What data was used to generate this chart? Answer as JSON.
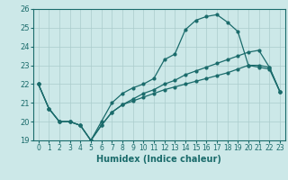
{
  "xlabel": "Humidex (Indice chaleur)",
  "xlim": [
    -0.5,
    23.5
  ],
  "ylim": [
    19,
    26
  ],
  "yticks": [
    19,
    20,
    21,
    22,
    23,
    24,
    25,
    26
  ],
  "xticks": [
    0,
    1,
    2,
    3,
    4,
    5,
    6,
    7,
    8,
    9,
    10,
    11,
    12,
    13,
    14,
    15,
    16,
    17,
    18,
    19,
    20,
    21,
    22,
    23
  ],
  "bg_color": "#cce8e8",
  "line_color": "#1a6b6b",
  "grid_color": "#aacccc",
  "curve1_x": [
    0,
    1,
    2,
    3,
    4,
    5,
    6,
    7,
    8,
    9,
    10,
    11,
    12,
    13,
    14,
    15,
    16,
    17,
    18,
    19,
    20,
    21,
    22,
    23
  ],
  "curve1_y": [
    22.0,
    20.7,
    20.0,
    20.0,
    19.8,
    19.0,
    20.0,
    21.0,
    21.5,
    21.8,
    22.0,
    22.3,
    23.3,
    23.6,
    24.9,
    25.4,
    25.6,
    25.7,
    25.3,
    24.8,
    23.0,
    23.0,
    22.9,
    21.6
  ],
  "curve2_x": [
    0,
    1,
    2,
    3,
    4,
    5,
    6,
    7,
    8,
    9,
    10,
    11,
    12,
    13,
    14,
    15,
    16,
    17,
    18,
    19,
    20,
    21,
    22,
    23
  ],
  "curve2_y": [
    22.0,
    20.7,
    20.0,
    20.0,
    19.8,
    19.0,
    19.8,
    20.5,
    20.9,
    21.2,
    21.5,
    21.7,
    22.0,
    22.2,
    22.5,
    22.7,
    22.9,
    23.1,
    23.3,
    23.5,
    23.7,
    23.8,
    22.9,
    21.6
  ],
  "curve3_x": [
    0,
    1,
    2,
    3,
    4,
    5,
    6,
    7,
    8,
    9,
    10,
    11,
    12,
    13,
    14,
    15,
    16,
    17,
    18,
    19,
    20,
    21,
    22,
    23
  ],
  "curve3_y": [
    22.0,
    20.7,
    20.0,
    20.0,
    19.8,
    19.0,
    19.8,
    20.5,
    20.9,
    21.1,
    21.3,
    21.5,
    21.7,
    21.85,
    22.0,
    22.15,
    22.3,
    22.45,
    22.6,
    22.8,
    23.0,
    22.9,
    22.8,
    21.6
  ],
  "tick_fontsize": 5.5,
  "xlabel_fontsize": 7,
  "marker_size": 2.0,
  "line_width": 0.9
}
